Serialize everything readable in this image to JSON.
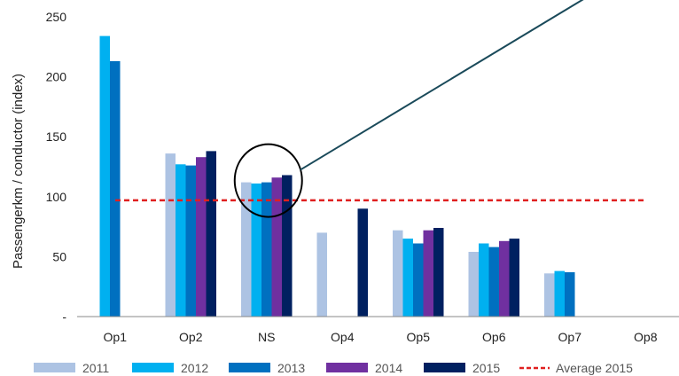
{
  "chart_data": {
    "type": "bar",
    "title": "",
    "xlabel": "",
    "ylabel": "Passengerkm / conductor (index)",
    "ylim": [
      0,
      250
    ],
    "yticks": [
      {
        "value": 0,
        "label": "-"
      },
      {
        "value": 50,
        "label": "50"
      },
      {
        "value": 100,
        "label": "100"
      },
      {
        "value": 150,
        "label": "150"
      },
      {
        "value": 200,
        "label": "200"
      },
      {
        "value": 250,
        "label": "250"
      }
    ],
    "categories": [
      "Op1",
      "Op2",
      "NS",
      "Op4",
      "Op5",
      "Op6",
      "Op7",
      "Op8"
    ],
    "series": [
      {
        "name": "2011",
        "color": "#adc3e3",
        "values": [
          null,
          136,
          112,
          70,
          72,
          54,
          36,
          null
        ]
      },
      {
        "name": "2012",
        "color": "#00b0f0",
        "values": [
          234,
          127,
          111,
          null,
          65,
          61,
          38,
          null
        ]
      },
      {
        "name": "2013",
        "color": "#0070c0",
        "values": [
          213,
          126,
          112,
          null,
          61,
          58,
          37,
          null
        ]
      },
      {
        "name": "2014",
        "color": "#7030a0",
        "values": [
          null,
          133,
          116,
          null,
          72,
          63,
          null,
          null
        ]
      },
      {
        "name": "2015",
        "color": "#002060",
        "values": [
          null,
          138,
          118,
          90,
          74,
          65,
          null,
          null
        ]
      }
    ],
    "reference_line": {
      "name": "Average 2015",
      "value": 97,
      "color": "#e02020",
      "style": "dashed"
    },
    "annotation": {
      "type": "circle-with-leader",
      "category": "NS",
      "color": "#000000",
      "leader_color": "#1a4a5a"
    },
    "legend": {
      "position": "bottom"
    },
    "grid": false
  }
}
